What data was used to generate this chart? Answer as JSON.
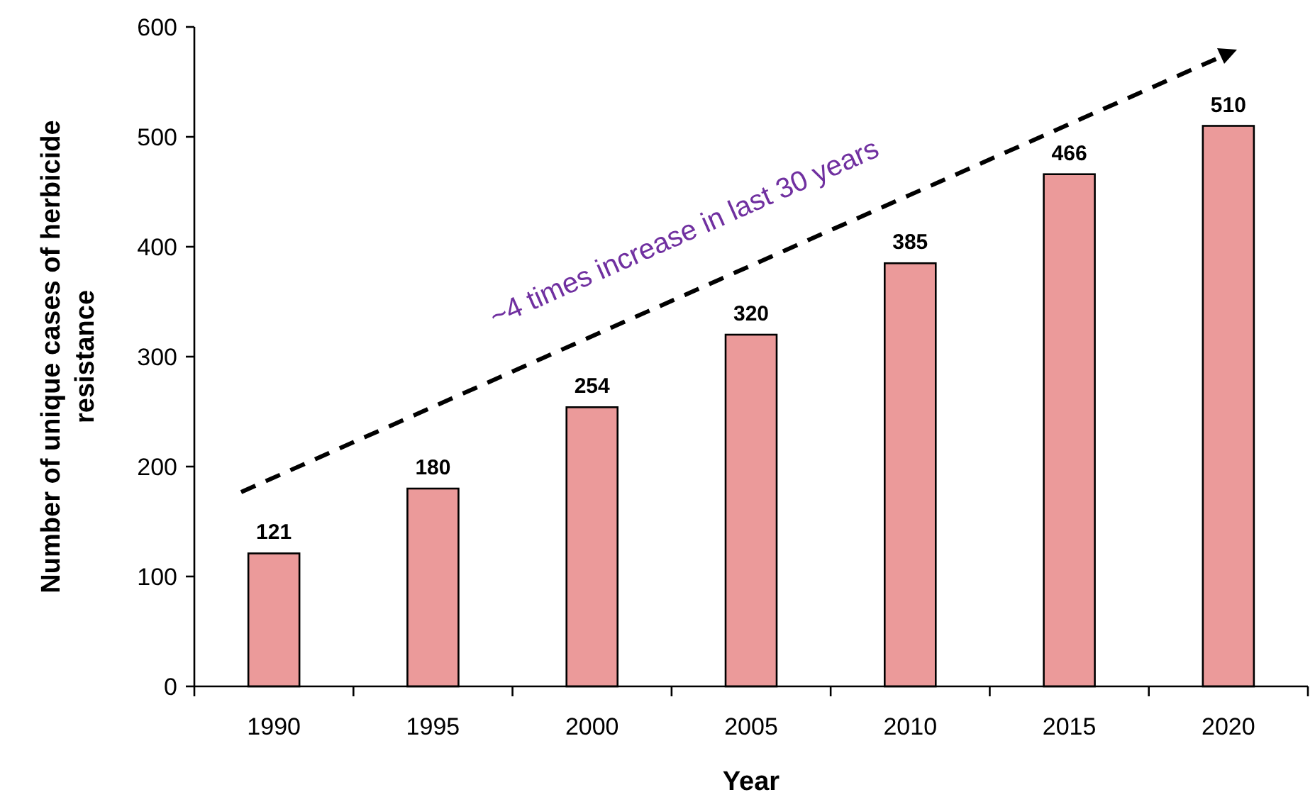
{
  "chart_data": {
    "type": "bar",
    "xlabel": "Year",
    "ylabel": "Number of unique cases of herbicide resistance",
    "categories": [
      "1990",
      "1995",
      "2000",
      "2005",
      "2010",
      "2015",
      "2020"
    ],
    "values": [
      121,
      180,
      254,
      320,
      385,
      466,
      510
    ],
    "color": "#eb9a9a",
    "data_labels": true,
    "ylim": [
      0,
      600
    ],
    "yticks": [
      0,
      100,
      200,
      300,
      400,
      500,
      600
    ],
    "annotations": [
      "~4 times increase in last 30 years"
    ]
  }
}
